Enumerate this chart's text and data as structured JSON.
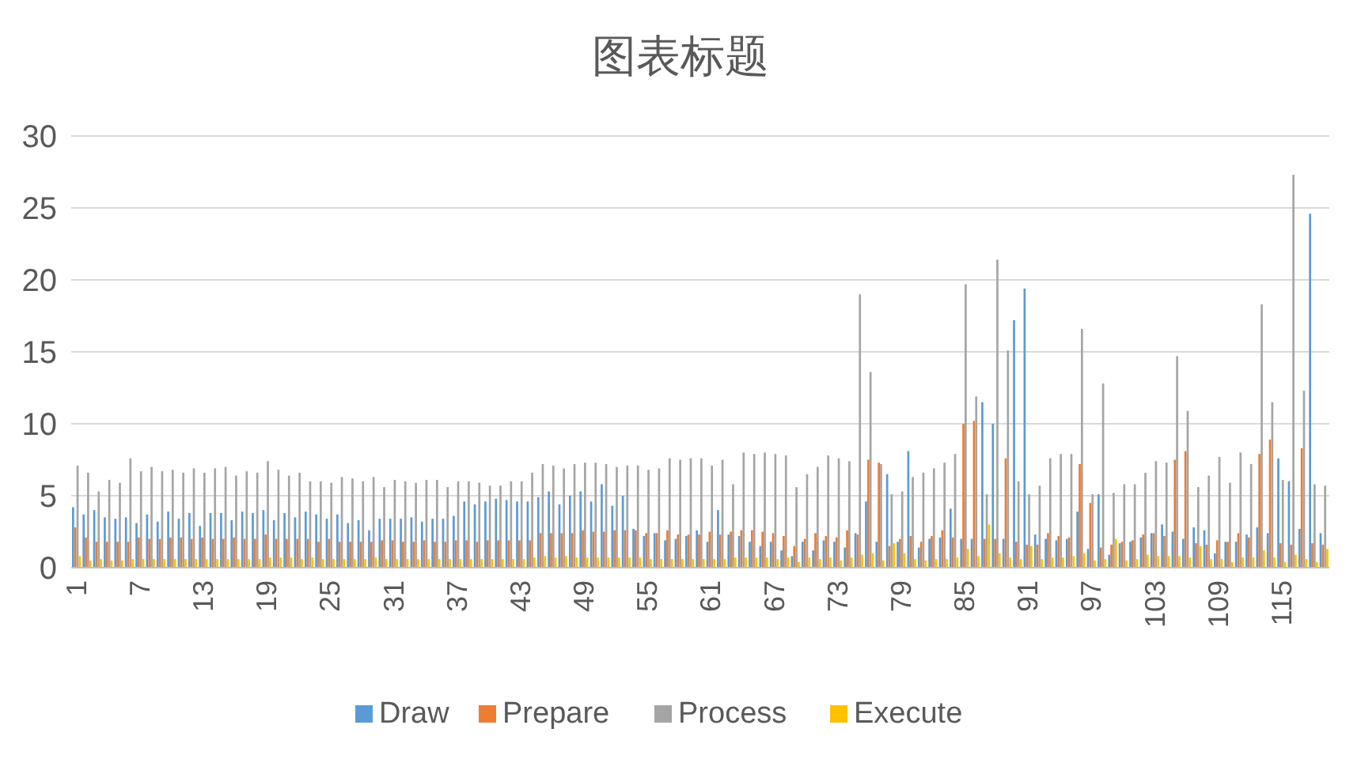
{
  "chart_data": {
    "type": "bar",
    "title": "图表标题",
    "categories": [
      "1",
      null,
      null,
      null,
      null,
      null,
      "7",
      null,
      null,
      null,
      null,
      null,
      "13",
      null,
      null,
      null,
      null,
      null,
      "19",
      null,
      null,
      null,
      null,
      null,
      "25",
      null,
      null,
      null,
      null,
      null,
      "31",
      null,
      null,
      null,
      null,
      null,
      "37",
      null,
      null,
      null,
      null,
      null,
      "43",
      null,
      null,
      null,
      null,
      null,
      "49",
      null,
      null,
      null,
      null,
      null,
      "55",
      null,
      null,
      null,
      null,
      null,
      "61",
      null,
      null,
      null,
      null,
      null,
      "67",
      null,
      null,
      null,
      null,
      null,
      "73",
      null,
      null,
      null,
      null,
      null,
      "79",
      null,
      null,
      null,
      null,
      null,
      "85",
      null,
      null,
      null,
      null,
      null,
      "91",
      null,
      null,
      null,
      null,
      null,
      "97",
      null,
      null,
      null,
      null,
      null,
      "103",
      null,
      null,
      null,
      null,
      null,
      "109",
      null,
      null,
      null,
      null,
      null,
      "115",
      null,
      null,
      null,
      null
    ],
    "series": [
      {
        "name": "Draw",
        "color": "#5b9bd5",
        "values": [
          4.2,
          3.7,
          4.0,
          3.5,
          3.4,
          3.5,
          3.1,
          3.7,
          3.2,
          3.9,
          3.4,
          3.8,
          2.9,
          3.8,
          3.8,
          3.3,
          3.9,
          3.8,
          4.0,
          3.3,
          3.8,
          3.5,
          3.9,
          3.7,
          3.4,
          3.7,
          3.1,
          3.3,
          2.6,
          3.4,
          3.4,
          3.4,
          3.5,
          3.2,
          3.4,
          3.4,
          3.6,
          4.6,
          4.4,
          4.6,
          4.8,
          4.7,
          4.6,
          4.6,
          4.9,
          5.3,
          4.4,
          5.0,
          5.3,
          4.6,
          5.8,
          4.3,
          5.0,
          2.7,
          2.2,
          2.4,
          1.9,
          2.0,
          2.2,
          2.6,
          1.8,
          4.0,
          2.3,
          2.2,
          1.8,
          1.5,
          1.8,
          1.2,
          0.8,
          1.8,
          1.2,
          1.9,
          1.8,
          1.4,
          2.4,
          4.6,
          1.8,
          6.5,
          1.8,
          8.1,
          1.4,
          2.0,
          2.1,
          4.1,
          2.0,
          2.0,
          11.5,
          10.0,
          2.0,
          17.2,
          19.4,
          2.3,
          2.0,
          1.9,
          2.0,
          3.9,
          1.3,
          5.1,
          0.9,
          1.7,
          1.8,
          2.1,
          2.4,
          3.0,
          2.5,
          2.0,
          2.8,
          2.6,
          1.0,
          1.8,
          1.8,
          2.3,
          2.8,
          2.4,
          7.6,
          6.0,
          2.7,
          24.6,
          2.4
        ]
      },
      {
        "name": "Prepare",
        "color": "#ed7d31",
        "values": [
          2.8,
          2.1,
          1.8,
          1.8,
          1.8,
          1.8,
          2.1,
          2.0,
          2.0,
          2.1,
          2.1,
          2.0,
          2.1,
          2.0,
          2.0,
          2.1,
          2.0,
          2.0,
          2.3,
          2.0,
          2.0,
          2.0,
          2.0,
          1.8,
          2.0,
          1.8,
          1.8,
          1.8,
          1.8,
          1.9,
          1.9,
          1.8,
          1.8,
          1.9,
          1.8,
          1.8,
          1.9,
          1.9,
          1.8,
          1.9,
          1.9,
          1.9,
          1.9,
          1.9,
          2.4,
          2.4,
          2.4,
          2.4,
          2.6,
          2.5,
          2.5,
          2.6,
          2.6,
          2.6,
          2.4,
          2.4,
          2.6,
          2.3,
          2.3,
          2.3,
          2.5,
          2.3,
          2.5,
          2.6,
          2.6,
          2.5,
          2.4,
          2.2,
          1.5,
          2.0,
          2.4,
          2.2,
          2.1,
          2.6,
          2.3,
          7.5,
          7.3,
          1.5,
          2.0,
          2.2,
          1.8,
          2.2,
          2.6,
          2.1,
          10.0,
          10.2,
          2.0,
          2.0,
          7.6,
          1.8,
          1.6,
          1.6,
          2.4,
          2.2,
          2.1,
          7.2,
          4.5,
          1.4,
          1.6,
          1.8,
          1.9,
          2.3,
          2.4,
          2.2,
          7.5,
          8.1,
          1.7,
          1.6,
          1.9,
          1.8,
          2.4,
          2.1,
          7.9,
          8.9,
          1.7,
          1.6,
          8.3,
          1.7,
          1.6
        ]
      },
      {
        "name": "Process",
        "color": "#a5a5a5",
        "values": [
          7.1,
          6.6,
          5.3,
          6.1,
          5.9,
          7.6,
          6.7,
          7.0,
          6.7,
          6.8,
          6.6,
          6.9,
          6.6,
          6.9,
          7.0,
          6.4,
          6.7,
          6.6,
          7.4,
          6.8,
          6.4,
          6.6,
          6.0,
          6.0,
          5.9,
          6.3,
          6.2,
          6.0,
          6.3,
          5.6,
          6.1,
          6.0,
          5.9,
          6.1,
          6.1,
          5.6,
          6.0,
          6.0,
          5.9,
          5.7,
          5.7,
          6.0,
          6.0,
          6.6,
          7.2,
          7.1,
          6.9,
          7.2,
          7.3,
          7.3,
          7.2,
          7.0,
          7.1,
          7.1,
          6.8,
          6.9,
          7.6,
          7.5,
          7.6,
          7.6,
          7.1,
          7.5,
          5.8,
          8.0,
          7.9,
          8.0,
          7.9,
          7.8,
          5.6,
          6.5,
          7.0,
          7.8,
          7.6,
          7.4,
          19.0,
          13.6,
          7.2,
          5.1,
          5.3,
          6.3,
          6.6,
          6.9,
          7.3,
          7.9,
          19.7,
          11.9,
          5.1,
          21.4,
          15.1,
          6.0,
          5.1,
          5.7,
          7.6,
          7.9,
          7.9,
          16.6,
          5.1,
          12.8,
          5.2,
          5.8,
          5.8,
          6.6,
          7.4,
          7.3,
          14.7,
          10.9,
          5.6,
          6.4,
          7.7,
          5.9,
          8.0,
          7.2,
          18.3,
          11.5,
          6.1,
          27.3,
          12.3,
          5.8,
          5.7
        ]
      },
      {
        "name": "Execute",
        "color": "#ffc000",
        "values": [
          0.8,
          0.5,
          0.6,
          0.5,
          0.5,
          0.6,
          0.6,
          0.6,
          0.6,
          0.6,
          0.6,
          0.6,
          0.6,
          0.6,
          0.6,
          0.6,
          0.6,
          0.6,
          0.7,
          0.7,
          0.7,
          0.6,
          0.7,
          0.6,
          0.6,
          0.6,
          0.6,
          0.6,
          0.7,
          0.6,
          0.6,
          0.6,
          0.6,
          0.6,
          0.6,
          0.6,
          0.6,
          0.6,
          0.6,
          0.6,
          0.6,
          0.6,
          0.6,
          0.7,
          0.8,
          0.7,
          0.8,
          0.7,
          0.7,
          0.7,
          0.7,
          0.7,
          0.7,
          0.7,
          0.6,
          0.6,
          0.6,
          0.6,
          0.6,
          0.6,
          0.6,
          0.6,
          0.7,
          0.7,
          0.7,
          0.7,
          0.6,
          0.7,
          0.4,
          0.7,
          0.6,
          0.7,
          0.5,
          0.7,
          0.9,
          1.0,
          0.5,
          1.7,
          1.0,
          0.6,
          0.5,
          0.6,
          0.6,
          0.7,
          1.3,
          0.8,
          3.0,
          1.0,
          0.7,
          0.6,
          1.5,
          0.6,
          0.7,
          0.7,
          0.8,
          1.0,
          0.5,
          0.6,
          2.0,
          0.5,
          0.6,
          0.9,
          0.8,
          0.8,
          0.8,
          0.7,
          1.5,
          0.6,
          0.6,
          0.4,
          0.7,
          0.7,
          1.2,
          0.7,
          0.4,
          0.9,
          0.6,
          0.4,
          1.3
        ]
      }
    ],
    "ylim": [
      0,
      30
    ],
    "yticks": [
      0,
      5,
      10,
      15,
      20,
      25,
      30
    ],
    "grid": "y",
    "legend": "bottom"
  }
}
